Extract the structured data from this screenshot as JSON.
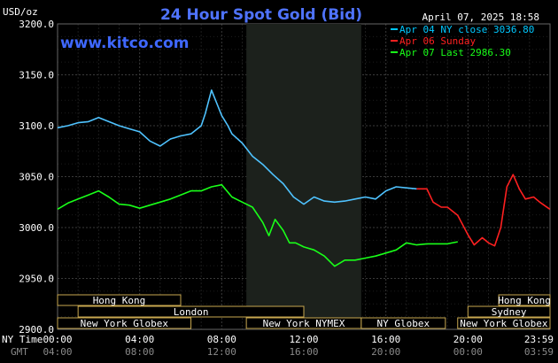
{
  "chart_data": {
    "type": "line",
    "title": "24 Hour Spot Gold (Bid)",
    "watermark": "www.kitco.com",
    "timestamp": "April 07, 2025 18:58",
    "ylabel": "USD/oz",
    "ylim": [
      2900,
      3200
    ],
    "yticks": [
      "3200.0",
      "3150.0",
      "3100.0",
      "3050.0",
      "3000.0",
      "2950.0",
      "2900.0"
    ],
    "x_axis_label_ny": "NY Time",
    "x_axis_label_gmt": "GMT",
    "xlim_hours": [
      0,
      24
    ],
    "xticks_ny": [
      "00:00",
      "04:00",
      "08:00",
      "12:00",
      "16:00",
      "20:00",
      "23:59"
    ],
    "xticks_gmt": [
      "04:00",
      "08:00",
      "12:00",
      "16:00",
      "20:00",
      "00:00",
      "03:59"
    ],
    "grid": true,
    "highlight_band_hours": [
      9.2,
      14.8
    ],
    "legend_position": "top-right",
    "legend": [
      {
        "text": "Apr 04 NY close 3036.80",
        "color": "#00c8ff"
      },
      {
        "text": "Apr 06 Sunday",
        "color": "#ff2020"
      },
      {
        "text": "Apr 07 Last 2986.30",
        "color": "#19ff19"
      }
    ],
    "series": [
      {
        "name": "Apr 04 NY close 3036.80",
        "color": "#4fc3ff",
        "x": [
          0,
          0.5,
          1,
          1.5,
          2,
          2.5,
          3,
          3.5,
          4,
          4.5,
          5,
          5.5,
          6,
          6.5,
          7,
          7.2,
          7.5,
          7.8,
          8,
          8.3,
          8.5,
          9,
          9.5,
          10,
          10.5,
          11,
          11.5,
          12,
          12.5,
          13,
          13.5,
          14,
          14.5,
          15,
          15.5,
          16,
          16.5,
          17,
          17.5
        ],
        "y": [
          3098,
          3100,
          3103,
          3104,
          3108,
          3104,
          3100,
          3097,
          3094,
          3085,
          3080,
          3087,
          3090,
          3092,
          3100,
          3112,
          3135,
          3120,
          3110,
          3100,
          3092,
          3083,
          3070,
          3062,
          3052,
          3043,
          3030,
          3023,
          3030,
          3026,
          3025,
          3026,
          3028,
          3030,
          3028,
          3036,
          3040,
          3039,
          3038
        ]
      },
      {
        "name": "Apr 06 Sunday",
        "color": "#ff2020",
        "x": [
          17.5,
          18,
          18.3,
          18.7,
          19,
          19.5,
          20,
          20.3,
          20.7,
          21,
          21.3,
          21.6,
          21.9,
          22.2,
          22.5,
          22.8,
          23.2,
          23.5,
          23.99
        ],
        "y": [
          3038,
          3038,
          3025,
          3020,
          3020,
          3012,
          2993,
          2983,
          2990,
          2985,
          2982,
          3000,
          3040,
          3052,
          3038,
          3028,
          3030,
          3025,
          3018
        ]
      },
      {
        "name": "Apr 07 Last 2986.30",
        "color": "#19ff19",
        "x": [
          0,
          0.5,
          1,
          1.5,
          2,
          2.5,
          3,
          3.5,
          4,
          4.5,
          5,
          5.5,
          6,
          6.5,
          7,
          7.5,
          8,
          8.5,
          9,
          9.5,
          10,
          10.3,
          10.6,
          11,
          11.3,
          11.6,
          12,
          12.5,
          13,
          13.5,
          14,
          14.5,
          15,
          15.5,
          16,
          16.5,
          17,
          17.5,
          18,
          18.5,
          19,
          19.5
        ],
        "y": [
          3018,
          3024,
          3028,
          3032,
          3036,
          3030,
          3023,
          3022,
          3019,
          3022,
          3025,
          3028,
          3032,
          3036,
          3036,
          3040,
          3042,
          3030,
          3025,
          3020,
          3005,
          2992,
          3008,
          2997,
          2985,
          2985,
          2981,
          2978,
          2972,
          2962,
          2968,
          2968,
          2970,
          2972,
          2975,
          2978,
          2985,
          2983,
          2984,
          2984,
          2984,
          2986
        ]
      }
    ],
    "sessions": [
      {
        "label": "Hong Kong",
        "start": 0,
        "end": 6.0,
        "row": 0
      },
      {
        "label": "London",
        "start": 1.0,
        "end": 12.0,
        "row": 1
      },
      {
        "label": "New York Globex",
        "start": 0,
        "end": 6.5,
        "row": 2
      },
      {
        "label": "New York NYMEX",
        "start": 9.2,
        "end": 14.8,
        "row": 2
      },
      {
        "label": "NY Globex",
        "start": 14.8,
        "end": 18.9,
        "row": 2
      },
      {
        "label": "Hong Kong",
        "start": 21.5,
        "end": 24,
        "row": 0
      },
      {
        "label": "Sydney",
        "start": 20.0,
        "end": 24,
        "row": 1
      },
      {
        "label": "New York Globex",
        "start": 19.5,
        "end": 24,
        "row": 2
      }
    ]
  }
}
